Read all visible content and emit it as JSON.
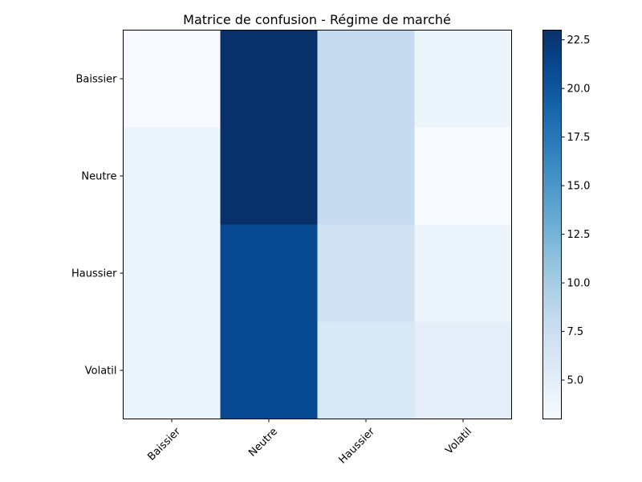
{
  "chart_data": {
    "type": "heatmap",
    "title": "Matrice de confusion - Régime de marché",
    "rows": [
      "Baissier",
      "Neutre",
      "Haussier",
      "Volatil"
    ],
    "columns": [
      "Baissier",
      "Neutre",
      "Haussier",
      "Volatil"
    ],
    "values": [
      [
        3,
        23,
        8,
        4
      ],
      [
        4,
        23,
        8,
        3
      ],
      [
        4,
        21,
        7,
        4
      ],
      [
        4,
        21,
        6,
        5
      ]
    ],
    "colormap": "Blues",
    "colorbar": {
      "min": 3,
      "max": 23,
      "ticks": [
        5.0,
        7.5,
        10.0,
        12.5,
        15.0,
        17.5,
        20.0,
        22.5
      ],
      "tick_labels": [
        "5.0",
        "7.5",
        "10.0",
        "12.5",
        "15.0",
        "17.5",
        "20.0",
        "22.5"
      ]
    },
    "xlabel": "",
    "ylabel": "",
    "x_tick_rotation_deg": 45
  }
}
